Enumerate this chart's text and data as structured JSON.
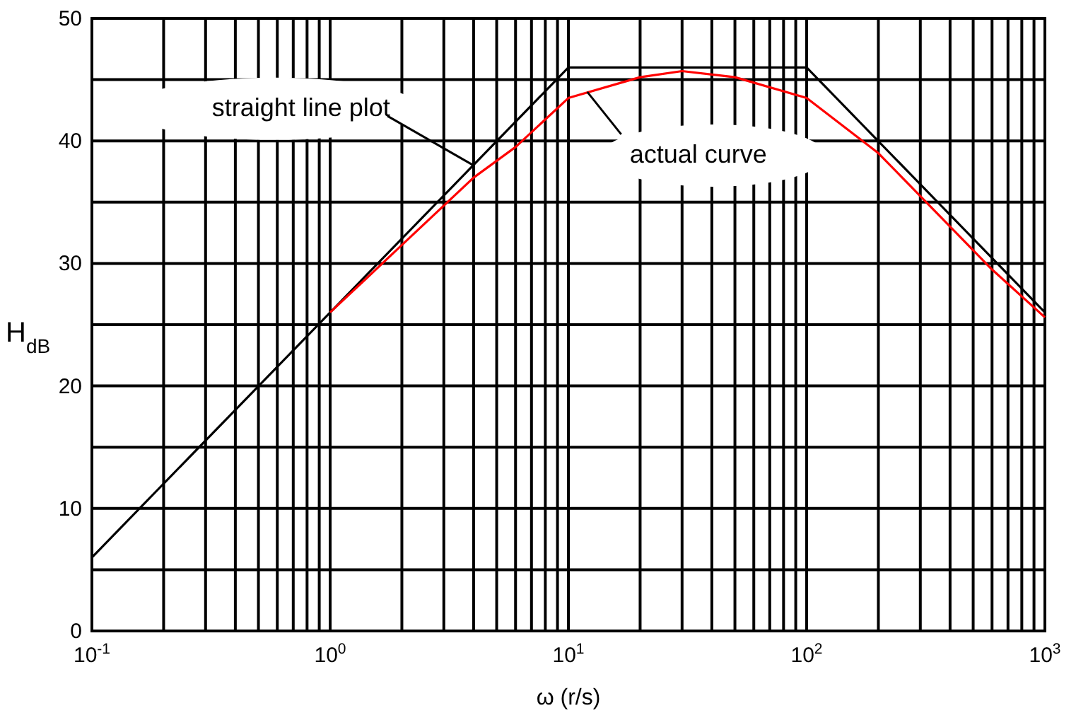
{
  "chart_data": {
    "type": "line",
    "xlabel": "ω (r/s)",
    "ylabel": "H$_{dB}$",
    "log": "x",
    "grid": true,
    "xlim": [
      0.1,
      1000
    ],
    "ylim": [
      0,
      50
    ],
    "xticks": [
      {
        "value": 0.1,
        "label": "10$^{-1}$"
      },
      {
        "value": 0.2,
        "label": null
      },
      {
        "value": 0.3,
        "label": null
      },
      {
        "value": 0.4,
        "label": null
      },
      {
        "value": 0.5,
        "label": null
      },
      {
        "value": 0.6,
        "label": null
      },
      {
        "value": 0.7,
        "label": null
      },
      {
        "value": 0.8,
        "label": null
      },
      {
        "value": 0.9,
        "label": null
      },
      {
        "value": 1,
        "label": "10$^{0}$"
      },
      {
        "value": 2,
        "label": null
      },
      {
        "value": 3,
        "label": null
      },
      {
        "value": 4,
        "label": null
      },
      {
        "value": 5,
        "label": null
      },
      {
        "value": 6,
        "label": null
      },
      {
        "value": 7,
        "label": null
      },
      {
        "value": 8,
        "label": null
      },
      {
        "value": 9,
        "label": null
      },
      {
        "value": 10,
        "label": "10$^{1}$"
      },
      {
        "value": 20,
        "label": null
      },
      {
        "value": 30,
        "label": null
      },
      {
        "value": 40,
        "label": null
      },
      {
        "value": 50,
        "label": null
      },
      {
        "value": 60,
        "label": null
      },
      {
        "value": 70,
        "label": null
      },
      {
        "value": 80,
        "label": null
      },
      {
        "value": 90,
        "label": null
      },
      {
        "value": 100,
        "label": "10$^{2}$"
      },
      {
        "value": 200,
        "label": null
      },
      {
        "value": 300,
        "label": null
      },
      {
        "value": 400,
        "label": null
      },
      {
        "value": 500,
        "label": null
      },
      {
        "value": 600,
        "label": null
      },
      {
        "value": 700,
        "label": null
      },
      {
        "value": 800,
        "label": null
      },
      {
        "value": 900,
        "label": null
      },
      {
        "value": 1000,
        "label": "10$^{3}$"
      }
    ],
    "yticks": [
      0,
      {
        "value": 5,
        "label": null
      },
      10,
      {
        "value": 15,
        "label": null
      },
      20,
      {
        "value": 25,
        "label": null
      },
      30,
      {
        "value": 35,
        "label": null
      },
      40,
      {
        "value": 45,
        "label": null
      },
      50
    ],
    "marker": "none",
    "line_style": "solid",
    "series": [
      {
        "color": "#000000",
        "x": [
          0.1,
          10,
          100,
          1000
        ],
        "values": [
          6,
          46,
          46,
          26
        ]
      },
      {
        "color": "#ff0000",
        "x": [
          1,
          2,
          4,
          6,
          10,
          20,
          30,
          50,
          100,
          200,
          400,
          600,
          1000
        ],
        "values": [
          26,
          31.5,
          37,
          39.5,
          43.5,
          45.2,
          45.7,
          45.2,
          43.5,
          39,
          33,
          29.5,
          25.6
        ]
      }
    ],
    "annotations": [
      {
        "text": "straight line plot",
        "x": 4,
        "y": 38
      },
      {
        "text": "actual curve",
        "x": 12,
        "y": 44
      }
    ]
  }
}
